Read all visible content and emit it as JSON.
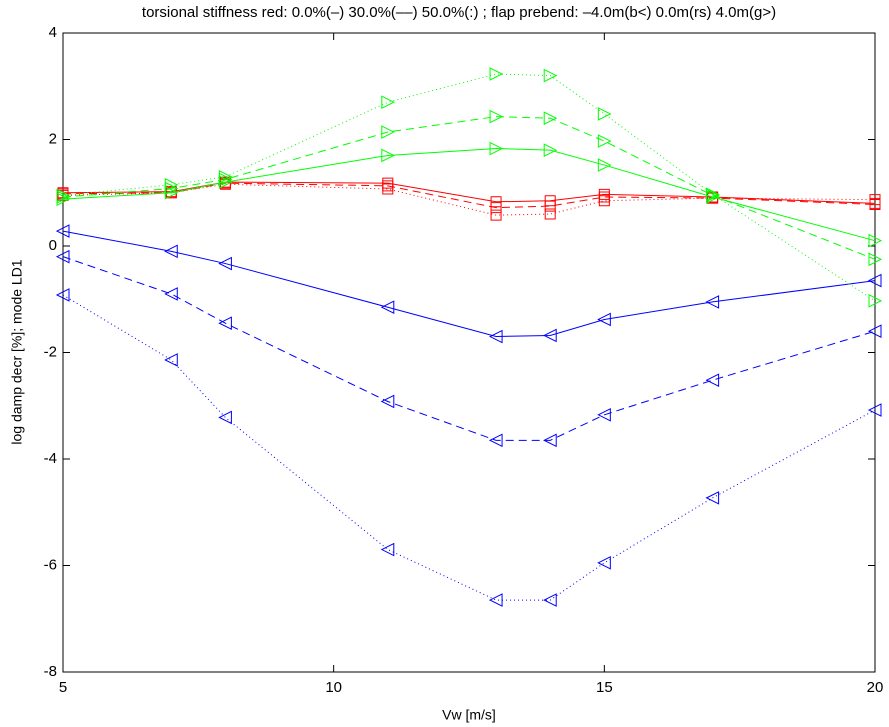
{
  "chart_data": {
    "type": "line",
    "title": "torsional stiffness red: 0.0%(–) 30.0%(––) 50.0%(:) ;  flap prebend: –4.0m(b<) 0.0m(rs) 4.0m(g>)",
    "x_label": "Vw [m/s]",
    "y_label": "log damp decr [%];  mode LD1",
    "x": [
      5,
      7,
      8,
      11,
      13,
      14,
      15,
      17,
      20
    ],
    "xlim": [
      5,
      20
    ],
    "xticks": [
      5,
      10,
      15,
      20
    ],
    "ylim": [
      -8,
      4
    ],
    "yticks": [
      -8,
      -6,
      -4,
      -2,
      0,
      2,
      4
    ],
    "grid": false,
    "series": [
      {
        "color": "#0000ff",
        "linestyle": "solid",
        "marker": "triangle-left",
        "values": [
          0.28,
          -0.1,
          -0.33,
          -1.15,
          -1.7,
          -1.68,
          -1.38,
          -1.05,
          -0.65
        ]
      },
      {
        "color": "#0000ff",
        "linestyle": "dashed",
        "marker": "triangle-left",
        "values": [
          -0.2,
          -0.9,
          -1.45,
          -2.92,
          -3.65,
          -3.65,
          -3.17,
          -2.52,
          -1.6
        ]
      },
      {
        "color": "#0000ff",
        "linestyle": "dotted",
        "marker": "triangle-left",
        "values": [
          -0.92,
          -2.14,
          -3.22,
          -5.7,
          -6.65,
          -6.65,
          -5.95,
          -4.73,
          -3.08
        ]
      },
      {
        "color": "#ff0000",
        "linestyle": "solid",
        "marker": "square",
        "values": [
          1.0,
          1.02,
          1.2,
          1.18,
          0.83,
          0.85,
          0.97,
          0.92,
          0.8
        ]
      },
      {
        "color": "#ff0000",
        "linestyle": "dashed",
        "marker": "square",
        "values": [
          0.98,
          1.0,
          1.18,
          1.13,
          0.72,
          0.75,
          0.92,
          0.9,
          0.78
        ]
      },
      {
        "color": "#ff0000",
        "linestyle": "dotted",
        "marker": "square",
        "values": [
          0.95,
          1.0,
          1.16,
          1.07,
          0.58,
          0.6,
          0.85,
          0.9,
          0.87
        ]
      },
      {
        "color": "#00ff00",
        "linestyle": "solid",
        "marker": "triangle-right",
        "values": [
          0.88,
          1.0,
          1.2,
          1.7,
          1.83,
          1.8,
          1.52,
          0.92,
          0.1
        ]
      },
      {
        "color": "#00ff00",
        "linestyle": "dashed",
        "marker": "triangle-right",
        "values": [
          0.92,
          1.08,
          1.25,
          2.14,
          2.43,
          2.4,
          1.97,
          0.95,
          -0.25
        ]
      },
      {
        "color": "#00ff00",
        "linestyle": "dotted",
        "marker": "triangle-right",
        "values": [
          0.95,
          1.15,
          1.3,
          2.7,
          3.23,
          3.2,
          2.48,
          0.97,
          -1.03
        ]
      }
    ]
  }
}
